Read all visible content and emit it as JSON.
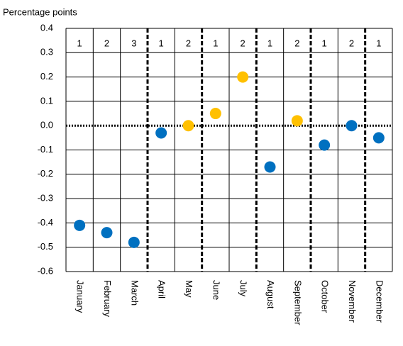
{
  "chart_data": {
    "type": "scatter",
    "y_axis_title": "Percentage points",
    "categories": [
      "January",
      "February",
      "March",
      "April",
      "May",
      "June",
      "July",
      "August",
      "September",
      "October",
      "November",
      "December"
    ],
    "annotations": [
      "1",
      "2",
      "3",
      "1",
      "2",
      "1",
      "2",
      "1",
      "2",
      "1",
      "2",
      "1"
    ],
    "values": [
      -0.41,
      -0.44,
      -0.48,
      -0.03,
      0.0,
      0.05,
      0.2,
      -0.17,
      0.02,
      -0.08,
      0.0,
      -0.05
    ],
    "point_colors": [
      "#0070c0",
      "#0070c0",
      "#0070c0",
      "#0070c0",
      "#ffc000",
      "#ffc000",
      "#ffc000",
      "#0070c0",
      "#ffc000",
      "#0070c0",
      "#0070c0",
      "#0070c0"
    ],
    "ylim": [
      -0.6,
      0.4
    ],
    "yticks": [
      0.4,
      0.3,
      0.2,
      0.1,
      {
        "value": 0,
        "label": "0.0"
      },
      -0.1,
      -0.2,
      -0.3,
      -0.4,
      -0.5,
      -0.6
    ],
    "grid": true
  }
}
